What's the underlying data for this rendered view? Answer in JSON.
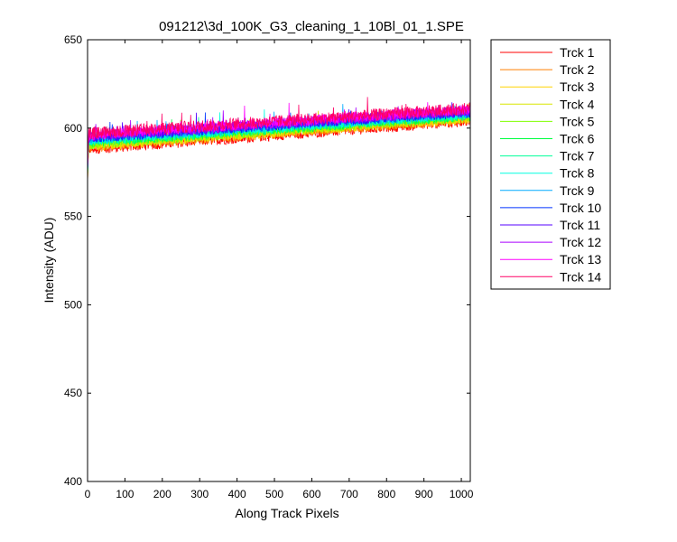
{
  "chart_data": {
    "type": "line",
    "title": "091212\\3d_100K_G3_cleaning_1_10Bl_01_1.SPE",
    "xlabel": "Along Track Pixels",
    "ylabel": "Intensity (ADU)",
    "xlim": [
      0,
      1024
    ],
    "ylim": [
      400,
      650
    ],
    "xticks": [
      0,
      100,
      200,
      300,
      400,
      500,
      600,
      700,
      800,
      900,
      1000
    ],
    "yticks": [
      400,
      450,
      500,
      550,
      600,
      650
    ],
    "grid": false,
    "legend_position": "outside-top-right",
    "series": [
      {
        "name": "Trck 1",
        "color": "#ff0000",
        "start": 588,
        "end": 604,
        "noise": 3
      },
      {
        "name": "Trck 2",
        "color": "#ff7f00",
        "start": 589,
        "end": 605,
        "noise": 3
      },
      {
        "name": "Trck 3",
        "color": "#ffd400",
        "start": 590,
        "end": 605.5,
        "noise": 3
      },
      {
        "name": "Trck 4",
        "color": "#d8e600",
        "start": 590.5,
        "end": 606,
        "noise": 3
      },
      {
        "name": "Trck 5",
        "color": "#80ff00",
        "start": 591,
        "end": 606.5,
        "noise": 3
      },
      {
        "name": "Trck 6",
        "color": "#00ff40",
        "start": 592,
        "end": 607,
        "noise": 3
      },
      {
        "name": "Trck 7",
        "color": "#00ff99",
        "start": 592.5,
        "end": 607.5,
        "noise": 3
      },
      {
        "name": "Trck 8",
        "color": "#00ffe0",
        "start": 593,
        "end": 608,
        "noise": 3
      },
      {
        "name": "Trck 9",
        "color": "#00aaff",
        "start": 594,
        "end": 608.5,
        "noise": 3
      },
      {
        "name": "Trck 10",
        "color": "#0033ff",
        "start": 594.5,
        "end": 609,
        "noise": 3
      },
      {
        "name": "Trck 11",
        "color": "#5500ff",
        "start": 595,
        "end": 609.5,
        "noise": 3
      },
      {
        "name": "Trck 12",
        "color": "#aa00ff",
        "start": 595.5,
        "end": 610,
        "noise": 3
      },
      {
        "name": "Trck 13",
        "color": "#ff00ff",
        "start": 596,
        "end": 610.5,
        "noise": 3
      },
      {
        "name": "Trck 14",
        "color": "#ff0066",
        "start": 597,
        "end": 611,
        "noise": 3.5
      }
    ]
  }
}
